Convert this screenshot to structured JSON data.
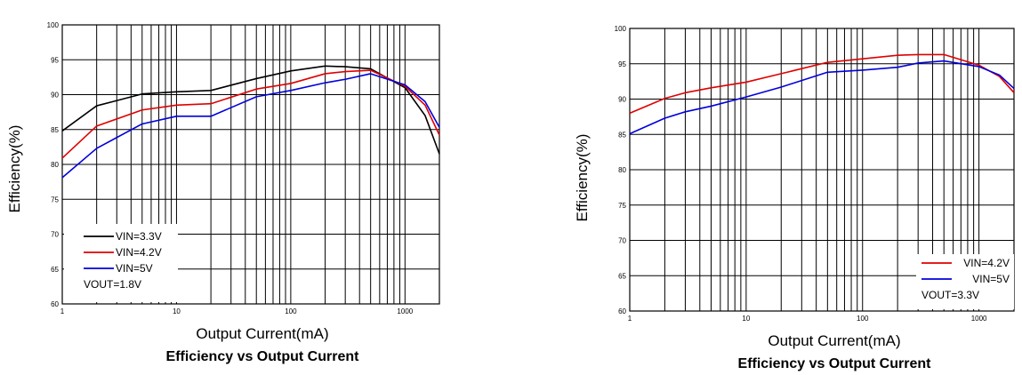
{
  "chart_data": [
    {
      "type": "line",
      "title": "Efficiency vs Output Current",
      "xlabel": "Output Current(mA)",
      "ylabel": "Efficiency(%)",
      "xscale": "log",
      "xlim": [
        1,
        2000
      ],
      "ylim": [
        60,
        100
      ],
      "xticks": [
        "1",
        "10",
        "100",
        "1000"
      ],
      "yticks": [
        "60",
        "65",
        "70",
        "75",
        "80",
        "85",
        "90",
        "95",
        "100"
      ],
      "grid": true,
      "legend_position": "bottom-left",
      "annotation": "VOUT=1.8V",
      "series": [
        {
          "name": "VIN=3.3V",
          "color": "#000000",
          "x": [
            1,
            2,
            5,
            10,
            20,
            50,
            100,
            200,
            300,
            500,
            1000,
            1500,
            2000
          ],
          "y": [
            84.8,
            88.4,
            90.1,
            90.4,
            90.6,
            92.3,
            93.4,
            94.1,
            94.0,
            93.7,
            91.0,
            87.0,
            81.5
          ]
        },
        {
          "name": "VIN=4.2V",
          "color": "#e00000",
          "x": [
            1,
            2,
            5,
            10,
            20,
            50,
            100,
            200,
            300,
            500,
            1000,
            1500,
            2000
          ],
          "y": [
            80.9,
            85.5,
            87.8,
            88.5,
            88.7,
            90.8,
            91.6,
            93.0,
            93.3,
            93.5,
            91.2,
            88.5,
            84.2
          ]
        },
        {
          "name": "VIN=5V",
          "color": "#0000dd",
          "x": [
            1,
            2,
            5,
            10,
            20,
            50,
            100,
            200,
            300,
            500,
            1000,
            1500,
            2000
          ],
          "y": [
            78.1,
            82.3,
            85.8,
            86.9,
            86.9,
            89.7,
            90.6,
            91.7,
            92.2,
            93.0,
            91.4,
            89.0,
            85.3
          ]
        }
      ]
    },
    {
      "type": "line",
      "title": "Efficiency vs Output Current",
      "xlabel": "Output Current(mA)",
      "ylabel": "Efficiency(%)",
      "xscale": "log",
      "xlim": [
        1,
        2000
      ],
      "ylim": [
        60,
        100
      ],
      "xticks": [
        "1",
        "10",
        "100",
        "1000"
      ],
      "yticks": [
        "60",
        "65",
        "70",
        "75",
        "80",
        "85",
        "90",
        "95",
        "100"
      ],
      "grid": true,
      "legend_position": "bottom-right",
      "annotation": "VOUT=3.3V",
      "series": [
        {
          "name": "VIN=4.2V",
          "color": "#e00000",
          "x": [
            1,
            2,
            3,
            5,
            10,
            20,
            50,
            100,
            200,
            300,
            500,
            1000,
            1500,
            2000
          ],
          "y": [
            88.0,
            90.1,
            90.9,
            91.6,
            92.4,
            93.6,
            95.2,
            95.7,
            96.2,
            96.3,
            96.3,
            94.8,
            93.2,
            90.9
          ]
        },
        {
          "name": "VIN=5V",
          "color": "#0000dd",
          "x": [
            1,
            2,
            3,
            5,
            10,
            20,
            50,
            100,
            200,
            300,
            500,
            1000,
            1500,
            2000
          ],
          "y": [
            85.1,
            87.3,
            88.2,
            89.0,
            90.3,
            91.7,
            93.8,
            94.1,
            94.5,
            95.1,
            95.4,
            94.6,
            93.4,
            91.5
          ]
        }
      ]
    }
  ]
}
